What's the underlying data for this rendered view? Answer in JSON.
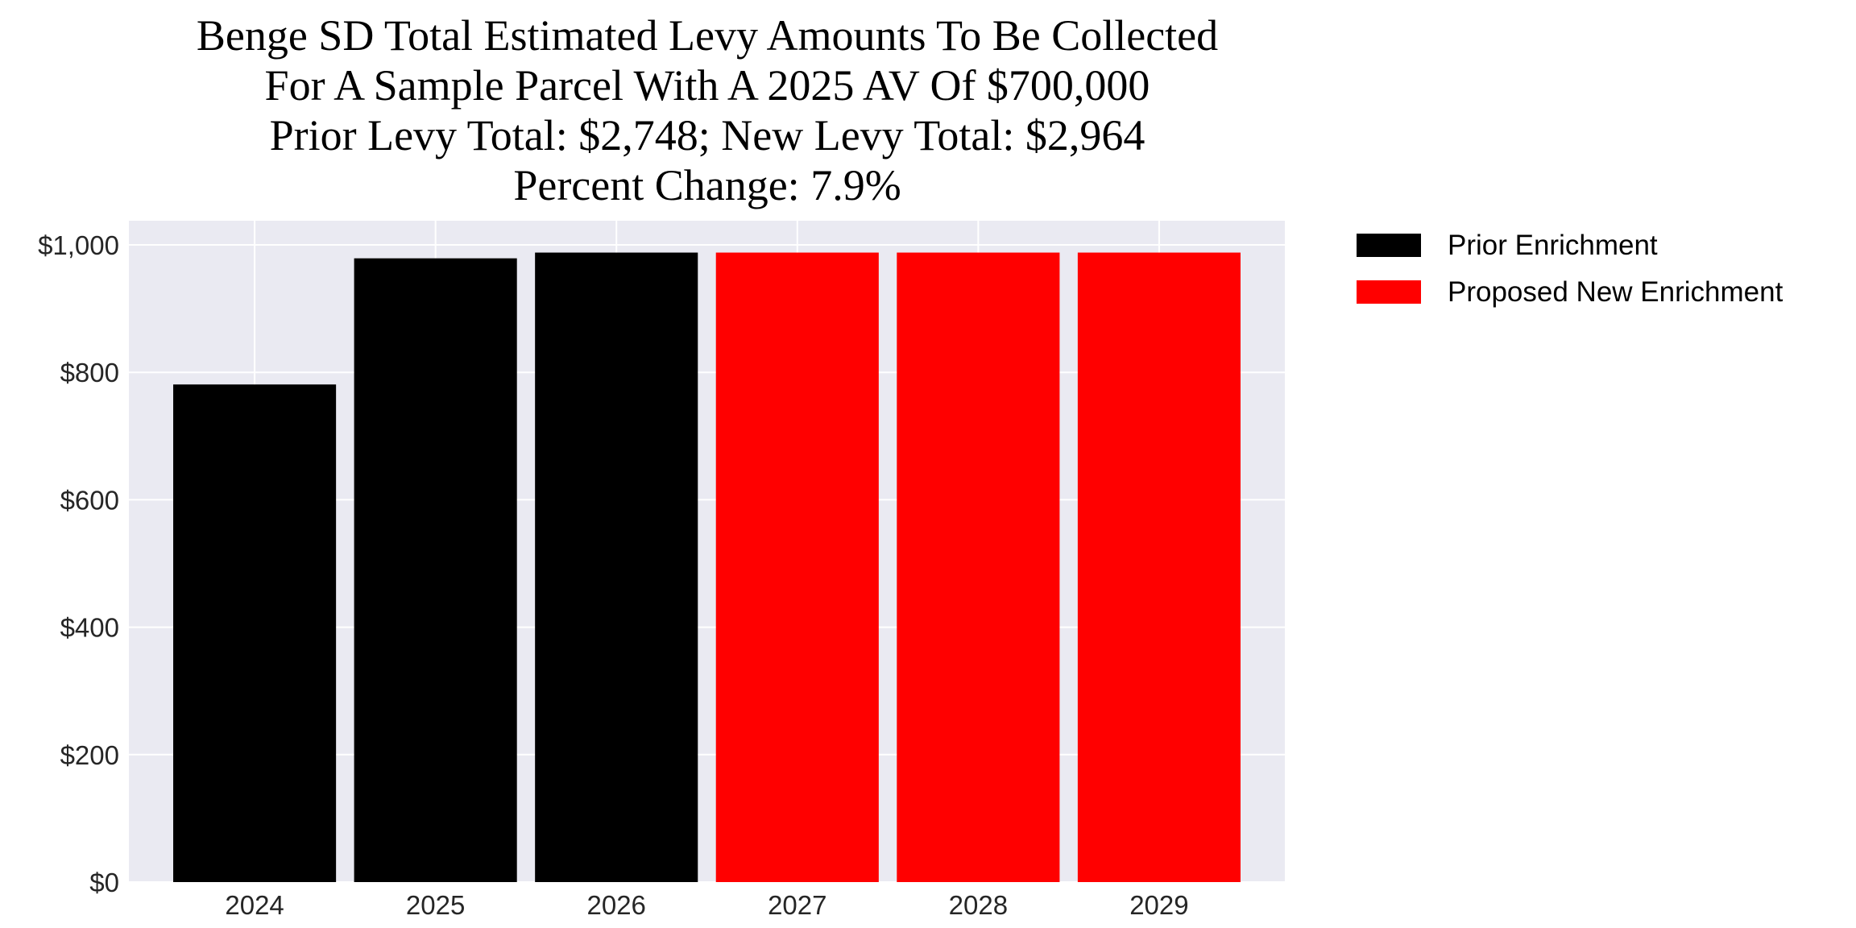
{
  "chart_data": {
    "type": "bar",
    "title_lines": [
      "Benge SD Total Estimated Levy Amounts To Be Collected",
      "For A Sample Parcel With A 2025 AV Of $700,000",
      "Prior Levy Total:  $2,748; New Levy Total: $2,964",
      "Percent Change: 7.9%"
    ],
    "xlabel": "",
    "ylabel": "",
    "categories": [
      "2024",
      "2025",
      "2026",
      "2027",
      "2028",
      "2029"
    ],
    "values": [
      781,
      979,
      988,
      988,
      988,
      988
    ],
    "bar_series": [
      "Prior Enrichment",
      "Prior Enrichment",
      "Prior Enrichment",
      "Proposed New Enrichment",
      "Proposed New Enrichment",
      "Proposed New Enrichment"
    ],
    "ylim": [
      0,
      1038
    ],
    "yticks": [
      0,
      200,
      400,
      600,
      800,
      1000
    ],
    "ytick_labels": [
      "$0",
      "$200",
      "$400",
      "$600",
      "$800",
      "$1,000"
    ],
    "grid": true,
    "legend": {
      "placement": "outside-top-right",
      "entries": [
        {
          "name": "Prior Enrichment",
          "color": "#000000"
        },
        {
          "name": "Proposed New Enrichment",
          "color": "#FF0000"
        }
      ]
    },
    "colors": {
      "background": "#EAEAF2",
      "grid": "#FFFFFF"
    }
  }
}
